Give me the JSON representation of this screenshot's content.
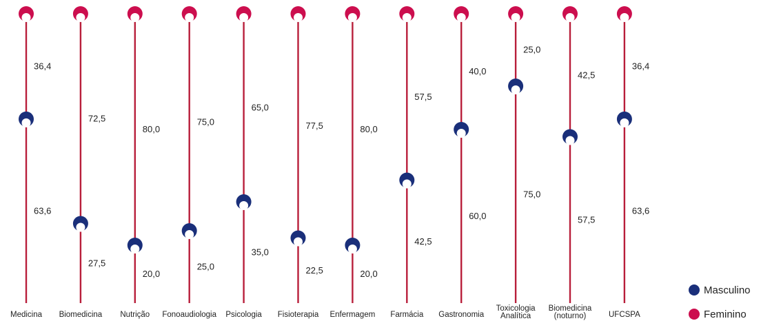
{
  "chart_data": {
    "type": "dot-stack",
    "title": "",
    "xlabel": "",
    "ylabel": "",
    "ylim": [
      0,
      100
    ],
    "categories": [
      "Medicina",
      "Biomedicina",
      "Nutrição",
      "Fonoaudiologia",
      "Psicologia",
      "Fisioterapia",
      "Enfermagem",
      "Farmácia",
      "Gastronomia",
      "Toxicologia Analítica",
      "Biomedicina (noturno)",
      "UFCSPA"
    ],
    "category_lines": [
      [
        "Medicina"
      ],
      [
        "Biomedicina"
      ],
      [
        "Nutrição"
      ],
      [
        "Fonoaudiologia"
      ],
      [
        "Psicologia"
      ],
      [
        "Fisioterapia"
      ],
      [
        "Enfermagem"
      ],
      [
        "Farmácia"
      ],
      [
        "Gastronomia"
      ],
      [
        "Toxicologia",
        "Analítica"
      ],
      [
        "Biomedicina",
        "(noturno)"
      ],
      [
        "UFCSPA"
      ]
    ],
    "series": [
      {
        "name": "Masculino",
        "color": "#1a2f7a",
        "values": [
          36.4,
          72.5,
          80.0,
          75.0,
          65.0,
          77.5,
          80.0,
          57.5,
          40.0,
          25.0,
          42.5,
          36.4
        ],
        "labels": [
          "36,4",
          "72,5",
          "80,0",
          "75,0",
          "65,0",
          "77,5",
          "80,0",
          "57,5",
          "40,0",
          "25,0",
          "42,5",
          "36,4"
        ]
      },
      {
        "name": "Feminino",
        "color": "#cc0e4e",
        "values": [
          63.6,
          27.5,
          20.0,
          25.0,
          35.0,
          22.5,
          20.0,
          42.5,
          60.0,
          75.0,
          57.5,
          63.6
        ],
        "labels": [
          "63,6",
          "27,5",
          "20,0",
          "25,0",
          "35,0",
          "22,5",
          "20,0",
          "42,5",
          "60,0",
          "75,0",
          "57,5",
          "63,6"
        ]
      }
    ],
    "line_color": "#b81e3a",
    "legend": {
      "position": "bottom-right",
      "items": [
        "Masculino",
        "Feminino"
      ]
    }
  }
}
